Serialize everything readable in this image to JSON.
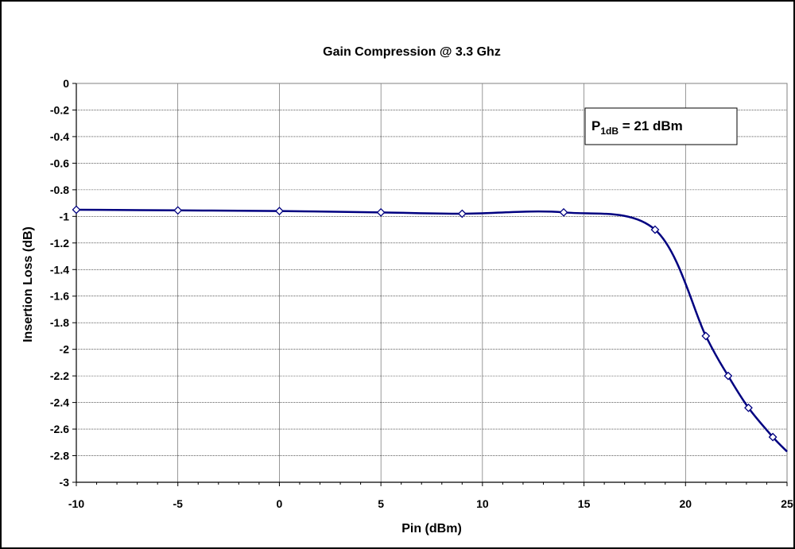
{
  "chart_data": {
    "type": "line",
    "title": "Gain Compression  @ 3.3 Ghz",
    "xlabel": "Pin (dBm)",
    "ylabel": "Insertion Loss (dB)",
    "xlim": [
      -10,
      25
    ],
    "ylim": [
      -3,
      0
    ],
    "xticks": [
      -10,
      -5,
      0,
      5,
      10,
      15,
      20,
      25
    ],
    "xtick_labels": [
      "-10",
      "-5",
      "0",
      "5",
      "10",
      "15",
      "20",
      "25"
    ],
    "yticks": [
      0,
      -0.2,
      -0.4,
      -0.6,
      -0.8,
      -1,
      -1.2,
      -1.4,
      -1.6,
      -1.8,
      -2,
      -2.2,
      -2.4,
      -2.6,
      -2.8,
      -3
    ],
    "ytick_labels": [
      "0",
      "-0.2",
      "-0.4",
      "-0.6",
      "-0.8",
      "-1",
      "-1.2",
      "-1.4",
      "-1.6",
      "-1.8",
      "-2",
      "-2.2",
      "-2.4",
      "-2.6",
      "-2.8",
      "-3"
    ],
    "grid": true,
    "legend": "none",
    "line_color": "#000080",
    "series": [
      {
        "x": [
          -10,
          -5,
          0,
          5,
          9,
          14,
          18.5,
          21,
          22.1,
          23.1,
          24.3
        ],
        "y": [
          -0.95,
          -0.955,
          -0.96,
          -0.97,
          -0.98,
          -0.97,
          -1.1,
          -1.9,
          -2.2,
          -2.44,
          -2.66
        ]
      }
    ],
    "annotation": {
      "main": "P",
      "sub": "1dB",
      "rest": " = 21 dBm",
      "position": "top-right"
    }
  }
}
